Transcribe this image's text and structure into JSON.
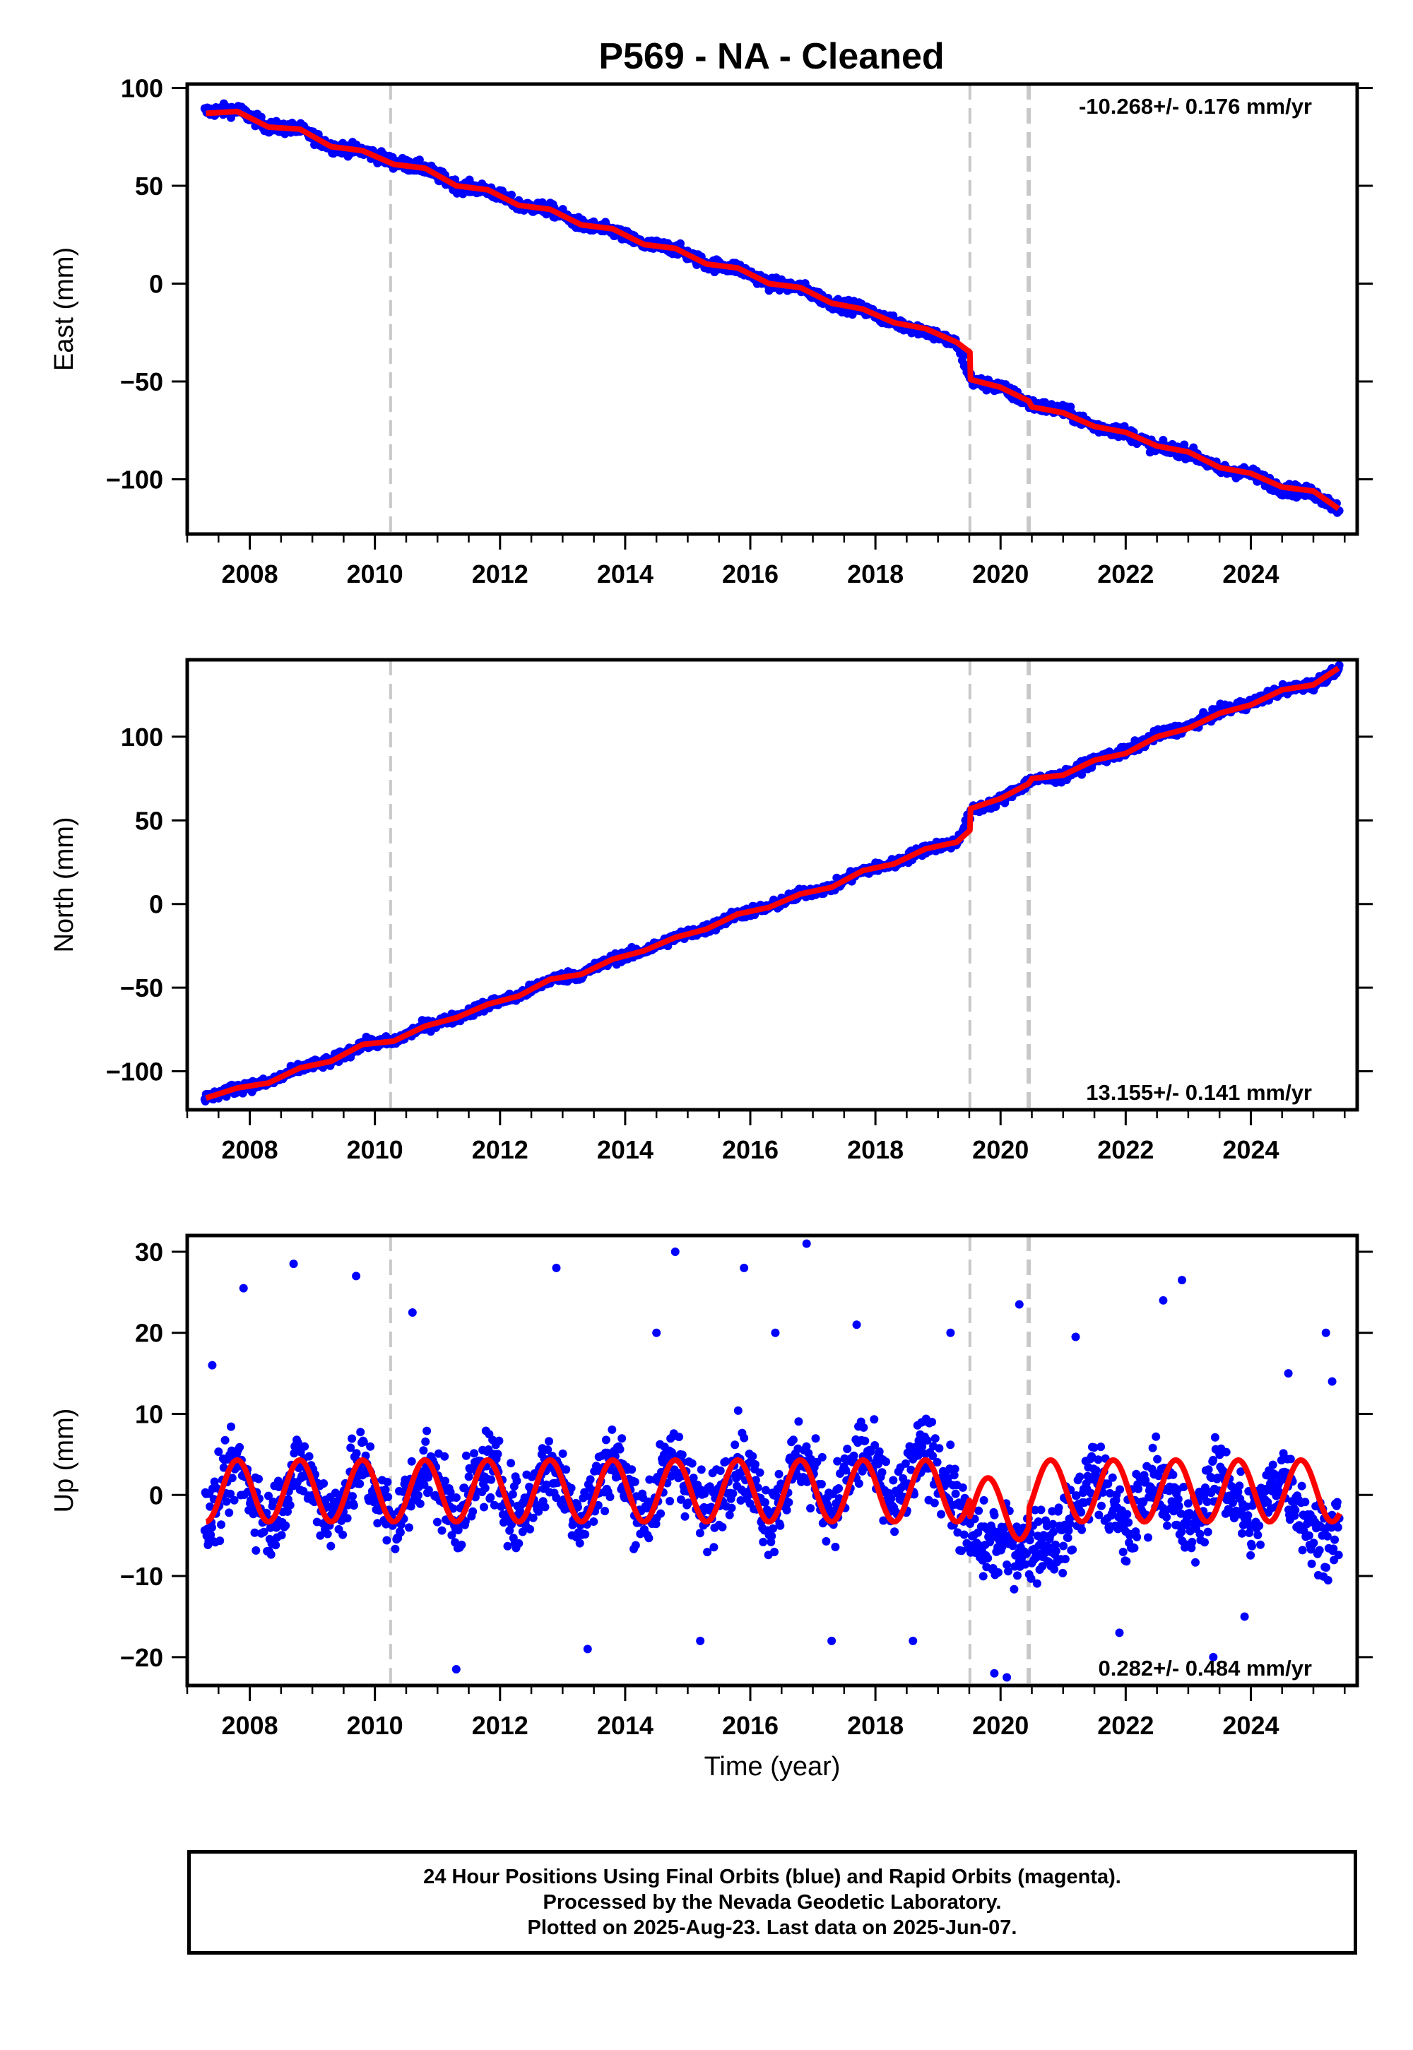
{
  "title": "P569  - NA - Cleaned",
  "colors": {
    "data": "#0000ff",
    "model": "#ff0000",
    "event_line": "#c8c8c8",
    "frame": "#000000"
  },
  "xlabel": "Time (year)",
  "chart_data": [
    {
      "type": "scatter",
      "component": "East",
      "ylabel": "East (mm)",
      "rate_label": "-10.268+/- 0.176 mm/yr",
      "rate_position": "top-right",
      "xlim": [
        2007.0,
        2025.7
      ],
      "ylim": [
        -128,
        102
      ],
      "xticks": [
        2008,
        2010,
        2012,
        2014,
        2016,
        2018,
        2020,
        2022,
        2024
      ],
      "yticks": [
        100,
        50,
        0,
        -50,
        -100
      ],
      "yticklabels": [
        "100",
        "50",
        "0",
        "−50",
        "−100"
      ],
      "event_lines": [
        2010.25,
        2019.51,
        2020.45
      ],
      "series": [
        {
          "role": "data",
          "x": [
            2007.3,
            2007.8,
            2008.3,
            2008.8,
            2009.3,
            2009.8,
            2010.3,
            2010.8,
            2011.3,
            2011.8,
            2012.3,
            2012.8,
            2013.3,
            2013.8,
            2014.3,
            2014.8,
            2015.3,
            2015.8,
            2016.3,
            2016.8,
            2017.3,
            2017.8,
            2018.3,
            2018.8,
            2019.3,
            2019.55,
            2020.0,
            2020.5,
            2021.0,
            2021.5,
            2022.0,
            2022.5,
            2023.0,
            2023.5,
            2024.0,
            2024.5,
            2025.0,
            2025.4
          ],
          "y": [
            88,
            89,
            80,
            79,
            70,
            68,
            62,
            59,
            50,
            48,
            40,
            38,
            30,
            27,
            20,
            18,
            10,
            8,
            0,
            -2,
            -10,
            -13,
            -20,
            -24,
            -31,
            -50,
            -53,
            -62,
            -65,
            -73,
            -76,
            -84,
            -86,
            -95,
            -97,
            -105,
            -107,
            -115
          ]
        },
        {
          "role": "model",
          "x": [
            2007.3,
            2007.8,
            2008.3,
            2008.8,
            2009.3,
            2009.8,
            2010.3,
            2010.8,
            2011.3,
            2011.8,
            2012.3,
            2012.8,
            2013.3,
            2013.8,
            2014.3,
            2014.8,
            2015.3,
            2015.8,
            2016.3,
            2016.8,
            2017.3,
            2017.8,
            2018.3,
            2018.8,
            2019.3,
            2019.51,
            2019.52,
            2020.0,
            2020.45,
            2020.5,
            2021.0,
            2021.5,
            2022.0,
            2022.5,
            2023.0,
            2023.5,
            2024.0,
            2024.5,
            2025.0,
            2025.4
          ],
          "y": [
            87,
            88,
            80,
            79,
            70,
            68,
            61,
            59,
            50,
            48,
            40,
            38,
            30,
            28,
            20,
            18,
            10,
            8,
            0,
            -2,
            -10,
            -13,
            -20,
            -23,
            -30,
            -35,
            -49,
            -53,
            -60,
            -63,
            -66,
            -73,
            -76,
            -83,
            -86,
            -94,
            -97,
            -104,
            -106,
            -115
          ]
        }
      ]
    },
    {
      "type": "scatter",
      "component": "North",
      "ylabel": "North (mm)",
      "rate_label": "13.155+/- 0.141 mm/yr",
      "rate_position": "bottom-right",
      "xlim": [
        2007.0,
        2025.7
      ],
      "ylim": [
        -123,
        146
      ],
      "xticks": [
        2008,
        2010,
        2012,
        2014,
        2016,
        2018,
        2020,
        2022,
        2024
      ],
      "yticks": [
        100,
        50,
        0,
        -50,
        -100
      ],
      "yticklabels": [
        "100",
        "50",
        "0",
        "−50",
        "−100"
      ],
      "event_lines": [
        2010.25,
        2019.51,
        2020.45
      ],
      "series": [
        {
          "role": "data",
          "x": [
            2007.3,
            2007.8,
            2008.3,
            2008.8,
            2009.3,
            2009.8,
            2010.3,
            2010.8,
            2011.3,
            2011.8,
            2012.3,
            2012.8,
            2013.3,
            2013.8,
            2014.3,
            2014.8,
            2015.3,
            2015.8,
            2016.3,
            2016.8,
            2017.3,
            2017.8,
            2018.3,
            2018.8,
            2019.3,
            2019.55,
            2020.0,
            2020.5,
            2021.0,
            2021.5,
            2022.0,
            2022.5,
            2023.0,
            2023.5,
            2024.0,
            2024.5,
            2025.0,
            2025.4
          ],
          "y": [
            -116,
            -110,
            -107,
            -98,
            -94,
            -84,
            -82,
            -73,
            -68,
            -60,
            -55,
            -45,
            -42,
            -33,
            -28,
            -20,
            -15,
            -6,
            -2,
            6,
            10,
            20,
            24,
            33,
            37,
            56,
            62,
            74,
            76,
            86,
            91,
            101,
            106,
            115,
            120,
            128,
            131,
            141
          ]
        },
        {
          "role": "model",
          "x": [
            2007.3,
            2007.8,
            2008.3,
            2008.8,
            2009.3,
            2009.8,
            2010.3,
            2010.8,
            2011.3,
            2011.8,
            2012.3,
            2012.8,
            2013.3,
            2013.8,
            2014.3,
            2014.8,
            2015.3,
            2015.8,
            2016.3,
            2016.8,
            2017.3,
            2017.8,
            2018.3,
            2018.8,
            2019.3,
            2019.51,
            2019.52,
            2020.0,
            2020.45,
            2020.5,
            2021.0,
            2021.5,
            2022.0,
            2022.5,
            2023.0,
            2023.5,
            2024.0,
            2024.5,
            2025.0,
            2025.4
          ],
          "y": [
            -116,
            -110,
            -107,
            -98,
            -94,
            -84,
            -82,
            -73,
            -68,
            -60,
            -55,
            -45,
            -42,
            -33,
            -28,
            -20,
            -15,
            -6,
            -2,
            6,
            10,
            20,
            24,
            33,
            37,
            44,
            57,
            63,
            72,
            75,
            77,
            86,
            90,
            100,
            105,
            114,
            119,
            128,
            131,
            141
          ]
        }
      ]
    },
    {
      "type": "scatter",
      "component": "Up",
      "ylabel": "Up (mm)",
      "rate_label": "0.282+/- 0.484 mm/yr",
      "rate_position": "bottom-right",
      "xlim": [
        2007.0,
        2025.7
      ],
      "ylim": [
        -23.5,
        32
      ],
      "xticks": [
        2008,
        2010,
        2012,
        2014,
        2016,
        2018,
        2020,
        2022,
        2024
      ],
      "yticks": [
        30,
        20,
        10,
        0,
        -10,
        -20
      ],
      "yticklabels": [
        "30",
        "20",
        "10",
        "0",
        "−10",
        "−20"
      ],
      "event_lines": [
        2010.25,
        2019.51,
        2020.45
      ],
      "series": [
        {
          "role": "data",
          "x": [
            2007.3,
            2007.8,
            2008.3,
            2008.8,
            2009.3,
            2009.8,
            2010.3,
            2010.8,
            2011.3,
            2011.8,
            2012.3,
            2012.8,
            2013.3,
            2013.8,
            2014.3,
            2014.8,
            2015.3,
            2015.8,
            2016.3,
            2016.8,
            2017.3,
            2017.8,
            2018.3,
            2018.8,
            2019.3,
            2019.55,
            2020.0,
            2020.5,
            2021.0,
            2021.5,
            2022.0,
            2022.5,
            2023.0,
            2023.5,
            2024.0,
            2024.5,
            2025.0,
            2025.4
          ],
          "y": [
            -4,
            4,
            -4,
            4,
            -3,
            4,
            -4,
            4,
            -3,
            4,
            -3,
            4,
            -3,
            5,
            -3,
            5,
            -3,
            5,
            -3,
            5,
            -2,
            6,
            -2,
            6,
            -1,
            -6,
            -6,
            -6,
            -5,
            3,
            -5,
            3,
            -5,
            3,
            -4,
            3,
            -5,
            -4
          ],
          "outliers_x": [
            2007.4,
            2007.9,
            2008.7,
            2009.7,
            2010.6,
            2011.3,
            2012.9,
            2013.4,
            2014.5,
            2014.8,
            2015.2,
            2015.9,
            2016.4,
            2016.9,
            2017.3,
            2017.7,
            2018.6,
            2019.2,
            2019.9,
            2020.1,
            2020.3,
            2021.2,
            2021.9,
            2022.6,
            2022.9,
            2023.4,
            2023.9,
            2024.6,
            2025.2,
            2025.3
          ],
          "outliers_y": [
            16,
            25.5,
            28.5,
            27,
            22.5,
            -21.5,
            28,
            -19,
            20,
            30,
            -18,
            28,
            20,
            31,
            -18,
            21,
            -18,
            20,
            -22,
            -22.5,
            23.5,
            19.5,
            -17,
            24,
            26.5,
            -20,
            -15,
            15,
            20,
            14
          ]
        },
        {
          "role": "model",
          "model_type": "annual",
          "offset": 0.5,
          "amplitude": 3.8,
          "phase_year": 2007.8
        }
      ]
    }
  ],
  "footer": {
    "line1": "24 Hour Positions Using Final Orbits (blue) and Rapid Orbits (magenta).",
    "line2": "Processed by the Nevada Geodetic Laboratory.",
    "line3": "Plotted on 2025-Aug-23. Last data on 2025-Jun-07."
  }
}
